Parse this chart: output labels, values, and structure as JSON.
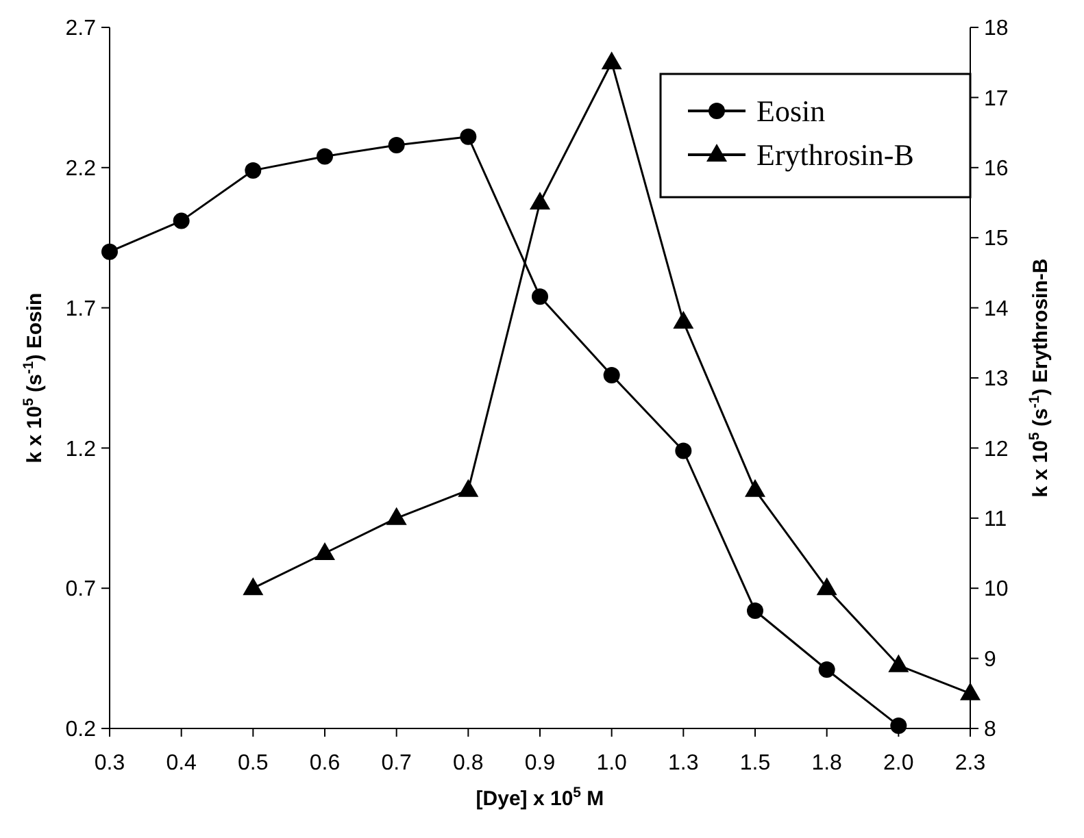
{
  "chart_data": {
    "type": "line",
    "xlabel": "[Dye] x 10$^{5}$ M",
    "ylabel": "k x 10$^{5}$ (s$^{-1}$) Eosin",
    "y2label": "k x 10$^{5}$ (s$^{-1}$) Erythrosin-B",
    "categories": [
      "0.3",
      "0.4",
      "0.5",
      "0.6",
      "0.7",
      "0.8",
      "0.9",
      "1.0",
      "1.3",
      "1.5",
      "1.8",
      "2.0",
      "2.3"
    ],
    "ylim": [
      0.2,
      2.7
    ],
    "yticks": [
      0.2,
      0.7,
      1.2,
      1.7,
      2.2,
      2.7
    ],
    "y2lim": [
      8,
      18
    ],
    "y2ticks": [
      8,
      9,
      10,
      11,
      12,
      13,
      14,
      15,
      16,
      17,
      18
    ],
    "series": [
      {
        "name": "Eosin",
        "color": "#000000",
        "marker": "circle",
        "values": [
          1.9,
          2.01,
          2.19,
          2.24,
          2.28,
          2.31,
          1.74,
          1.46,
          1.19,
          0.62,
          0.41,
          0.21,
          null
        ]
      },
      {
        "name": "Erythrosin-B",
        "color": "#000000",
        "marker": "triangle",
        "axis": "y2",
        "values": [
          null,
          null,
          10.0,
          10.5,
          11.0,
          11.4,
          15.5,
          17.5,
          13.8,
          11.4,
          10.0,
          8.9,
          8.5
        ]
      }
    ],
    "legend": "top right",
    "grid": false
  }
}
